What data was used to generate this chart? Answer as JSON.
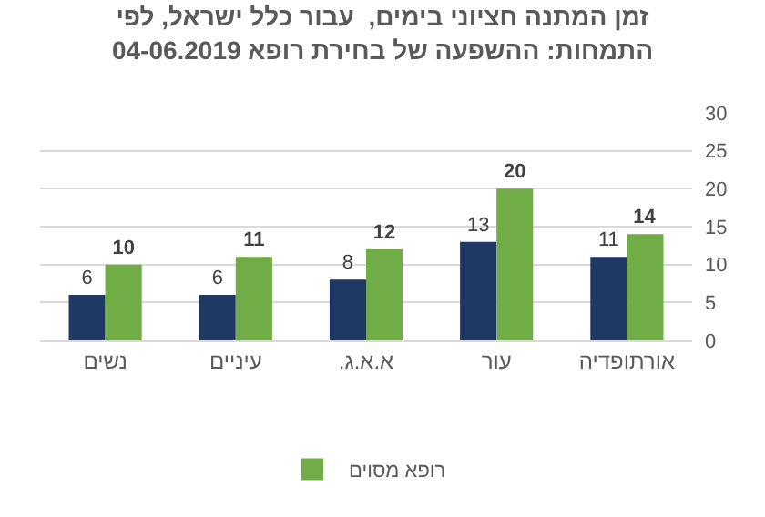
{
  "chart_data": {
    "type": "bar",
    "title": "זמן המתנה חציוני בימים,  עבור כלל ישראל, לפי\nהתמחות: ההשפעה של בחירת רופא 04-06.2019",
    "categories": [
      "נשים",
      "עיניים",
      "א.א.ג.",
      "עור",
      "אורתופדיה"
    ],
    "series": [
      {
        "color": "#203864",
        "values": [
          6,
          6,
          8,
          13,
          11
        ]
      },
      {
        "name": "רופא מסוים",
        "color": "#70ad47",
        "values": [
          10,
          11,
          12,
          20,
          14
        ]
      }
    ],
    "ylim": [
      0,
      30
    ],
    "yticks": [
      0,
      5,
      10,
      15,
      20,
      25,
      30
    ],
    "grid": "y",
    "legend": "bottom",
    "data_labels": true
  }
}
